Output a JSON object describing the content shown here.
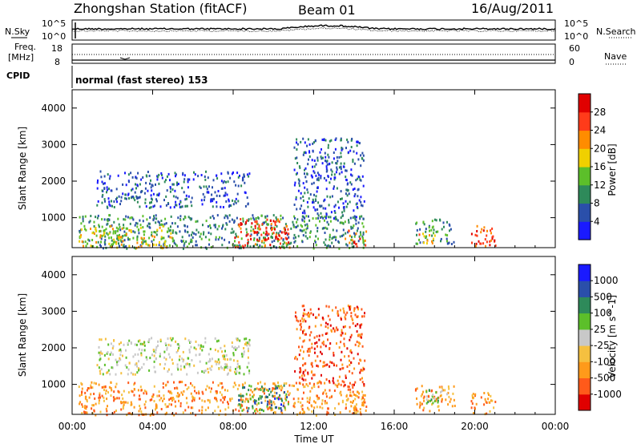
{
  "header": {
    "title": "Zhongshan Station (fitACF)",
    "beam": "Beam 01",
    "date": "16/Aug/2011"
  },
  "aux_panels": {
    "nsky_label": "N.Sky",
    "nsearch_label": "N.Search",
    "freq_label_line1": "Freq.",
    "freq_label_line2": "[MHz]",
    "nave_label": "Nave",
    "cpid_label": "CPID",
    "cpid_text": "normal (fast stereo) 153",
    "noise_ticks_left": [
      "10^5",
      "10^0"
    ],
    "noise_ticks_right": [
      "10^5",
      "10^0"
    ],
    "freq_ticks": [
      "18",
      "8"
    ],
    "nave_ticks": [
      "60",
      "0"
    ]
  },
  "chart_data": [
    {
      "type": "heatmap",
      "title": "",
      "quantity": "Power",
      "xlabel": "Time UT",
      "ylabel": "Slant Range [km]",
      "x_ticks": [
        "00:00",
        "04:00",
        "08:00",
        "12:00",
        "16:00",
        "20:00",
        "00:00"
      ],
      "y_ticks": [
        "1000",
        "2000",
        "3000",
        "4000"
      ],
      "xlim_hours": [
        0,
        24
      ],
      "ylim_km": [
        180,
        4500
      ],
      "colorbar": {
        "label": "Power [dB]",
        "ticks": [
          "4",
          "8",
          "12",
          "16",
          "20",
          "24",
          "28"
        ],
        "colors": [
          "#1a1aff",
          "#2a4faa",
          "#2e8a5a",
          "#5cbf2a",
          "#f0d000",
          "#ff8c00",
          "#ff3b1a",
          "#e00000"
        ]
      },
      "echo_regions": [
        {
          "t0": 0.3,
          "t1": 14.5,
          "r0": 180,
          "r1": 1100,
          "level": 2
        },
        {
          "t0": 0.3,
          "t1": 5.0,
          "r0": 200,
          "r1": 800,
          "level": 4
        },
        {
          "t0": 1.2,
          "t1": 8.8,
          "r0": 1300,
          "r1": 2300,
          "level": 1
        },
        {
          "t0": 8.0,
          "t1": 10.8,
          "r0": 200,
          "r1": 1000,
          "level": 6
        },
        {
          "t0": 9.0,
          "t1": 10.5,
          "r0": 400,
          "r1": 700,
          "level": 7
        },
        {
          "t0": 13.5,
          "t1": 14.6,
          "r0": 200,
          "r1": 700,
          "level": 6
        },
        {
          "t0": 17.0,
          "t1": 19.0,
          "r0": 300,
          "r1": 1000,
          "level": 2
        },
        {
          "t0": 17.2,
          "t1": 18.0,
          "r0": 250,
          "r1": 600,
          "level": 5
        },
        {
          "t0": 19.8,
          "t1": 21.0,
          "r0": 200,
          "r1": 800,
          "level": 6
        },
        {
          "t0": 11.0,
          "t1": 14.5,
          "r0": 1000,
          "r1": 3200,
          "level": 1
        }
      ]
    },
    {
      "type": "heatmap",
      "title": "",
      "quantity": "Velocity",
      "xlabel": "Time UT",
      "ylabel": "Slant Range [km]",
      "x_ticks": [
        "00:00",
        "04:00",
        "08:00",
        "12:00",
        "16:00",
        "20:00",
        "00:00"
      ],
      "y_ticks": [
        "1000",
        "2000",
        "3000",
        "4000"
      ],
      "xlim_hours": [
        0,
        24
      ],
      "ylim_km": [
        180,
        4500
      ],
      "colorbar": {
        "label": "Velocity [m s^-1]",
        "ticks": [
          "-1000",
          "-500",
          "-100",
          "-25",
          "25",
          "100",
          "500",
          "1000"
        ],
        "colors": [
          "#e00000",
          "#ff5a1a",
          "#ff9a1a",
          "#f5c040",
          "#c8c8c8",
          "#5cbf2a",
          "#2e8a5a",
          "#2a4faa",
          "#1a1aff"
        ]
      },
      "echo_regions": [
        {
          "t0": 0.3,
          "t1": 14.5,
          "r0": 180,
          "r1": 1100,
          "level": 2
        },
        {
          "t0": 1.2,
          "t1": 8.8,
          "r0": 1300,
          "r1": 2300,
          "level": 4
        },
        {
          "t0": 8.2,
          "t1": 10.8,
          "r0": 300,
          "r1": 1000,
          "level": 6
        },
        {
          "t0": 9.0,
          "t1": 10.5,
          "r0": 450,
          "r1": 700,
          "level": 7
        },
        {
          "t0": 13.5,
          "t1": 14.6,
          "r0": 200,
          "r1": 800,
          "level": 2
        },
        {
          "t0": 17.0,
          "t1": 19.0,
          "r0": 300,
          "r1": 1000,
          "level": 2
        },
        {
          "t0": 17.5,
          "t1": 18.6,
          "r0": 500,
          "r1": 900,
          "level": 5
        },
        {
          "t0": 19.8,
          "t1": 21.0,
          "r0": 200,
          "r1": 800,
          "level": 2
        },
        {
          "t0": 11.0,
          "t1": 14.5,
          "r0": 1000,
          "r1": 3200,
          "level": 1
        }
      ]
    }
  ]
}
